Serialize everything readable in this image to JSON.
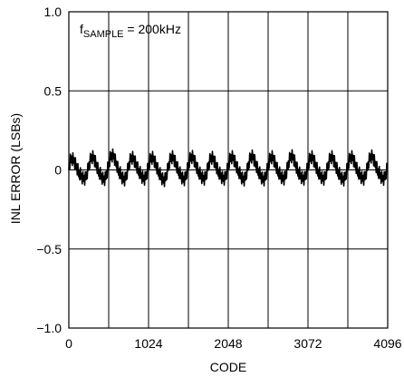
{
  "chart_data": {
    "type": "line",
    "title": "",
    "xlabel": "CODE",
    "ylabel": "INL ERROR (LSBs)",
    "xlim": [
      0,
      4096
    ],
    "ylim": [
      -1.0,
      1.0
    ],
    "x_ticks": [
      0,
      1024,
      2048,
      3072,
      4096
    ],
    "x_tick_labels": [
      "0",
      "1024",
      "2048",
      "3072",
      "4096"
    ],
    "x_grid_divisions": 8,
    "y_ticks": [
      1.0,
      0.5,
      0,
      -0.5,
      -1.0
    ],
    "y_tick_labels": [
      "1.0",
      "0.5",
      "0",
      "−0.5",
      "−1.0"
    ],
    "grid": true,
    "annotation": {
      "prefix": "f",
      "subscript": "SAMPLE",
      "suffix": " = 200kHz"
    },
    "series": [
      {
        "name": "",
        "color": "#000000",
        "pattern_period_codes": 256,
        "x": [
          0,
          64,
          128,
          192,
          256,
          320,
          384,
          448,
          512,
          576,
          640,
          704,
          768,
          832,
          896,
          960,
          1024,
          1088,
          1152,
          1216,
          1280,
          1344,
          1408,
          1472,
          1536,
          1600,
          1664,
          1728,
          1792,
          1856,
          1920,
          1984,
          2048,
          2112,
          2176,
          2240,
          2304,
          2368,
          2432,
          2496,
          2560,
          2624,
          2688,
          2752,
          2816,
          2880,
          2944,
          3008,
          3072,
          3136,
          3200,
          3264,
          3328,
          3392,
          3456,
          3520,
          3584,
          3648,
          3712,
          3776,
          3840,
          3904,
          3968,
          4032,
          4095
        ],
        "y": [
          0.0,
          0.05,
          -0.08,
          0.06,
          0.0,
          0.08,
          -0.07,
          0.05,
          0.02,
          0.1,
          -0.06,
          0.05,
          0.0,
          0.07,
          -0.06,
          0.06,
          0.0,
          0.07,
          -0.07,
          0.04,
          0.0,
          0.08,
          -0.06,
          0.05,
          0.01,
          0.08,
          -0.07,
          0.06,
          0.0,
          0.07,
          -0.07,
          0.06,
          0.0,
          0.08,
          -0.06,
          0.05,
          0.0,
          0.09,
          -0.06,
          0.05,
          0.0,
          0.08,
          -0.07,
          0.06,
          0.01,
          0.09,
          -0.07,
          0.06,
          0.0,
          0.08,
          -0.07,
          0.06,
          0.0,
          0.08,
          -0.07,
          0.05,
          0.0,
          0.08,
          -0.07,
          0.06,
          0.0,
          0.09,
          -0.06,
          0.06,
          0.0
        ]
      }
    ]
  }
}
